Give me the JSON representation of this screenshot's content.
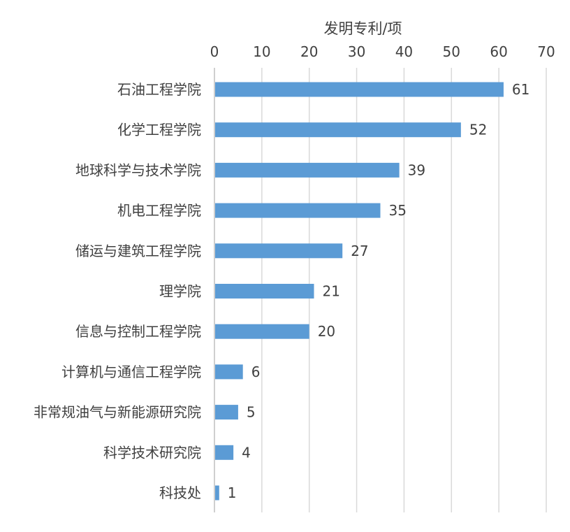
{
  "chart_data": {
    "type": "bar",
    "orientation": "horizontal",
    "xlabel": "发明专利/项",
    "xaxis_position": "top",
    "xlim": [
      0,
      70
    ],
    "xticks": [
      0,
      10,
      20,
      30,
      40,
      50,
      60,
      70
    ],
    "grid": true,
    "legend": "none",
    "bar_color": "#5b9bd5",
    "categories": [
      "石油工程学院",
      "化学工程学院",
      "地球科学与技术学院",
      "机电工程学院",
      "储运与建筑工程学院",
      "理学院",
      "信息与控制工程学院",
      "计算机与通信工程学院",
      "非常规油气与新能源研究院",
      "科学技术研究院",
      "科技处"
    ],
    "values": [
      61,
      52,
      39,
      35,
      27,
      21,
      20,
      6,
      5,
      4,
      1
    ]
  }
}
